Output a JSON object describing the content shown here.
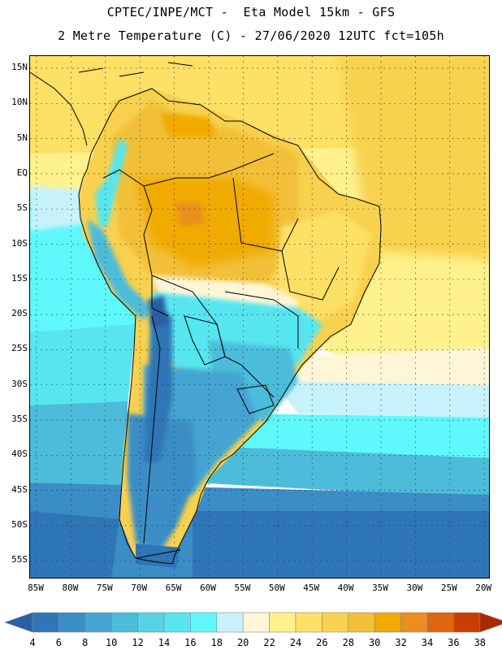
{
  "header": {
    "line1": "CPTEC/INPE/MCT -  Eta Model 15km - GFS",
    "line2": "2 Metre Temperature (C) - 27/06/2020 12UTC fct=105h"
  },
  "map": {
    "lat_labels": [
      "15N",
      "10N",
      "5N",
      "EQ",
      "5S",
      "10S",
      "15S",
      "20S",
      "25S",
      "30S",
      "35S",
      "40S",
      "45S",
      "50S",
      "55S"
    ],
    "lon_labels": [
      "85W",
      "80W",
      "75W",
      "70W",
      "65W",
      "60W",
      "55W",
      "50W",
      "45W",
      "40W",
      "35W",
      "30W",
      "25W",
      "20W"
    ],
    "lon_range": [
      -85,
      -20
    ],
    "lat_range": [
      -57,
      17
    ],
    "gridlines": "dotted"
  },
  "colorbar": {
    "levels": [
      "4",
      "6",
      "8",
      "10",
      "12",
      "14",
      "16",
      "18",
      "20",
      "22",
      "24",
      "26",
      "28",
      "30",
      "32",
      "34",
      "36",
      "38"
    ],
    "colors": [
      "#2a5fa4",
      "#2e76b6",
      "#3b8dc6",
      "#45a4d2",
      "#4cbcda",
      "#55d3e4",
      "#57e6ef",
      "#5ff8fc",
      "#c8f2fb",
      "#fff6d8",
      "#fff18c",
      "#fde066",
      "#f8d14e",
      "#f2c037",
      "#f0aa00",
      "#ea8f1f",
      "#df6510",
      "#c83d00",
      "#a92900"
    ]
  },
  "labels": {
    "axis_font": "mono"
  }
}
